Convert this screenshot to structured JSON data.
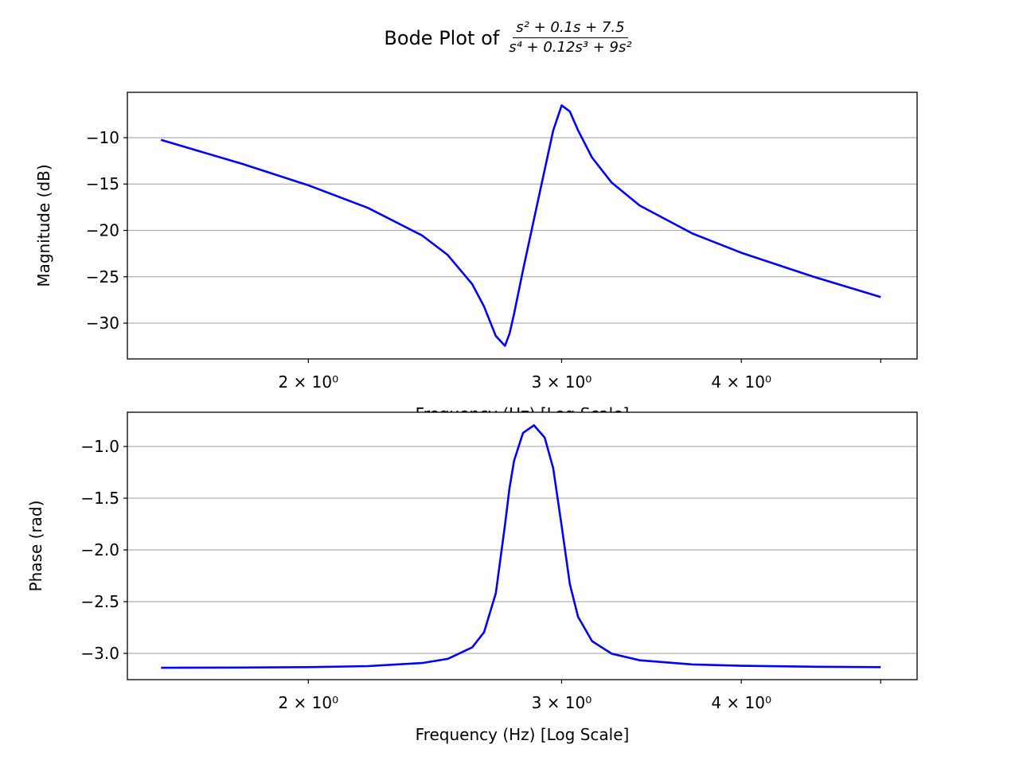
{
  "chart_data": [
    {
      "type": "line",
      "title": "Bode Plot of",
      "title_fraction": {
        "numerator": "s² + 0.1s + 7.5",
        "denominator": "s⁴ + 0.12s³ + 9s²"
      },
      "xlabel": "Frequency (Hz) [Log Scale]",
      "ylabel": "Magnitude (dB)",
      "xscale": "log",
      "xlim": [
        1.497,
        5.3
      ],
      "ylim": [
        -33.86,
        -5.11
      ],
      "grid": "y",
      "line_color": "#0000ff",
      "xticks": [
        {
          "value": 2,
          "label": "2 × 10⁰"
        },
        {
          "value": 3,
          "label": "3 × 10⁰"
        },
        {
          "value": 4,
          "label": "4 × 10⁰"
        },
        {
          "value": 5,
          "label": ""
        }
      ],
      "yticks": [
        {
          "value": -10,
          "label": "−10"
        },
        {
          "value": -15,
          "label": "−15"
        },
        {
          "value": -20,
          "label": "−20"
        },
        {
          "value": -25,
          "label": "−25"
        },
        {
          "value": -30,
          "label": "−30"
        }
      ],
      "x": [
        1.58,
        1.8,
        2.0,
        2.2,
        2.4,
        2.5,
        2.6,
        2.65,
        2.7,
        2.74,
        2.76,
        2.78,
        2.82,
        2.87,
        2.92,
        2.96,
        3.0,
        3.04,
        3.08,
        3.15,
        3.25,
        3.4,
        3.7,
        4.0,
        4.5,
        5.0
      ],
      "y": [
        -10.24,
        -12.83,
        -15.13,
        -17.57,
        -20.56,
        -22.65,
        -25.8,
        -28.22,
        -31.39,
        -32.44,
        -31.15,
        -29.02,
        -24.31,
        -18.81,
        -13.46,
        -9.23,
        -6.52,
        -7.18,
        -9.2,
        -12.15,
        -14.84,
        -17.33,
        -20.34,
        -22.41,
        -25.05,
        -27.18
      ]
    },
    {
      "type": "line",
      "xlabel": "Frequency (Hz) [Log Scale]",
      "ylabel": "Phase (rad)",
      "xscale": "log",
      "xlim": [
        1.497,
        5.3
      ],
      "ylim": [
        -3.254,
        -0.669
      ],
      "grid": "y",
      "line_color": "#0000ff",
      "xticks": [
        {
          "value": 2,
          "label": "2 × 10⁰"
        },
        {
          "value": 3,
          "label": "3 × 10⁰"
        },
        {
          "value": 4,
          "label": "4 × 10⁰"
        },
        {
          "value": 5,
          "label": ""
        }
      ],
      "yticks": [
        {
          "value": -1.0,
          "label": "−1.0"
        },
        {
          "value": -1.5,
          "label": "−1.5"
        },
        {
          "value": -2.0,
          "label": "−2.0"
        },
        {
          "value": -2.5,
          "label": "−2.5"
        },
        {
          "value": -3.0,
          "label": "−3.0"
        }
      ],
      "x": [
        1.58,
        1.8,
        2.0,
        2.2,
        2.4,
        2.5,
        2.6,
        2.65,
        2.7,
        2.74,
        2.76,
        2.78,
        2.82,
        2.87,
        2.92,
        2.96,
        3.0,
        3.04,
        3.08,
        3.15,
        3.25,
        3.4,
        3.7,
        4.0,
        4.5,
        5.0
      ],
      "y": [
        -3.139,
        -3.137,
        -3.133,
        -3.123,
        -3.093,
        -3.053,
        -2.942,
        -2.795,
        -2.419,
        -1.76,
        -1.403,
        -1.139,
        -0.87,
        -0.795,
        -0.914,
        -1.21,
        -1.768,
        -2.329,
        -2.646,
        -2.882,
        -3.003,
        -3.067,
        -3.107,
        -3.12,
        -3.129,
        -3.133
      ]
    }
  ]
}
